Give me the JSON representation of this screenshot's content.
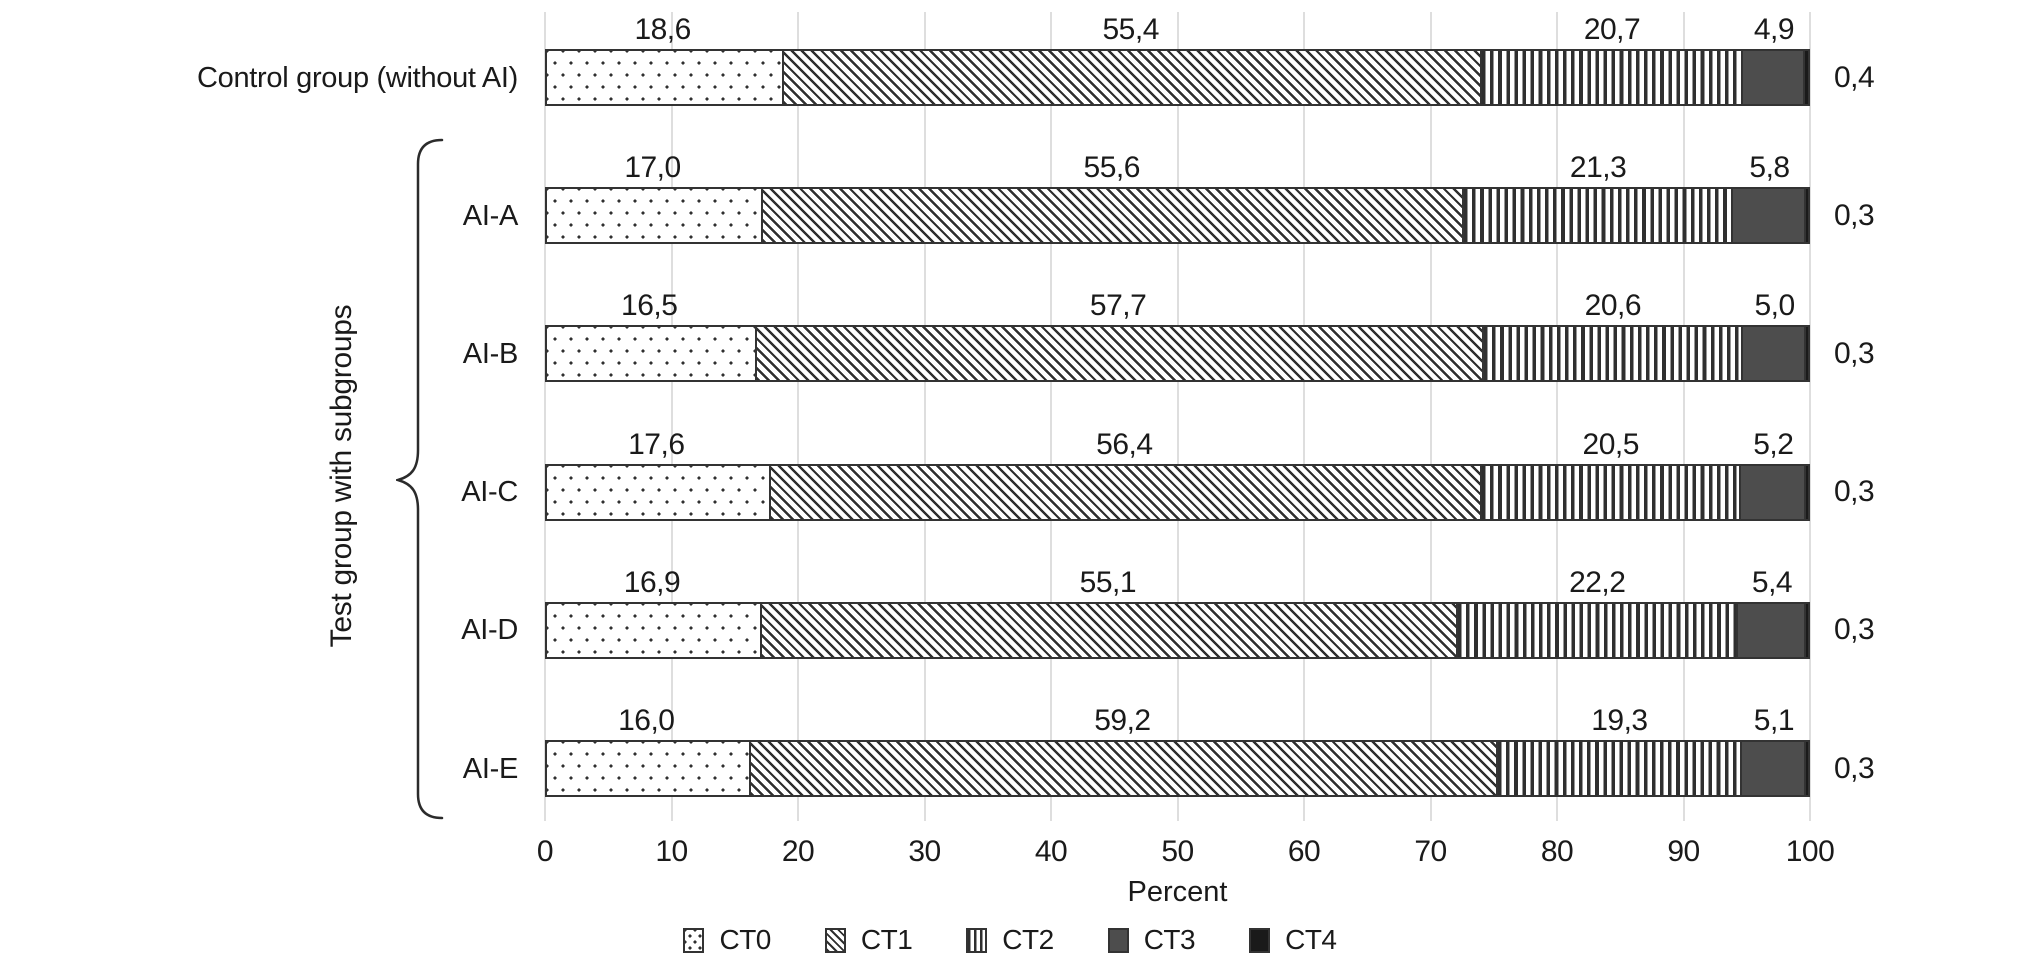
{
  "chart_data": {
    "type": "bar",
    "orientation": "horizontal-stacked",
    "title": "",
    "xlabel": "Percent",
    "ylabel": "",
    "xlim": [
      0,
      100
    ],
    "x_ticks": [
      0,
      10,
      20,
      30,
      40,
      50,
      60,
      70,
      80,
      90,
      100
    ],
    "grid": true,
    "legend_position": "bottom",
    "decimal_separator": ",",
    "group_label": "Test group with subgroups",
    "series_keys": [
      "CT0",
      "CT1",
      "CT2",
      "CT3",
      "CT4"
    ],
    "legend": [
      {
        "id": "CT0",
        "pattern": "dots"
      },
      {
        "id": "CT1",
        "pattern": "diag"
      },
      {
        "id": "CT2",
        "pattern": "vlines"
      },
      {
        "id": "CT3",
        "pattern": "solid"
      },
      {
        "id": "CT4",
        "pattern": "black"
      }
    ],
    "rows": [
      {
        "label": "Control group (without AI)",
        "in_test_group": false,
        "values": [
          18.6,
          55.4,
          20.7,
          4.9,
          0.4
        ],
        "display": [
          "18,6",
          "55,4",
          "20,7",
          "4,9",
          "0,4"
        ]
      },
      {
        "label": "AI-A",
        "in_test_group": true,
        "values": [
          17.0,
          55.6,
          21.3,
          5.8,
          0.3
        ],
        "display": [
          "17,0",
          "55,6",
          "21,3",
          "5,8",
          "0,3"
        ]
      },
      {
        "label": "AI-B",
        "in_test_group": true,
        "values": [
          16.5,
          57.7,
          20.6,
          5.0,
          0.3
        ],
        "display": [
          "16,5",
          "57,7",
          "20,6",
          "5,0",
          "0,3"
        ]
      },
      {
        "label": "AI-C",
        "in_test_group": true,
        "values": [
          17.6,
          56.4,
          20.5,
          5.2,
          0.3
        ],
        "display": [
          "17,6",
          "56,4",
          "20,5",
          "5,2",
          "0,3"
        ]
      },
      {
        "label": "AI-D",
        "in_test_group": true,
        "values": [
          16.9,
          55.1,
          22.2,
          5.4,
          0.3
        ],
        "display": [
          "16,9",
          "55,1",
          "22,2",
          "5,4",
          "0,3"
        ]
      },
      {
        "label": "AI-E",
        "in_test_group": true,
        "values": [
          16.0,
          59.2,
          19.3,
          5.1,
          0.3
        ],
        "display": [
          "16,0",
          "59,2",
          "19,3",
          "5,1",
          "0,3"
        ]
      }
    ],
    "colors": {
      "pattern_ink": "#2f2f2f",
      "segment_border": "#333333",
      "ct3_fill": "#4d4d4d",
      "ct4_fill": "#1a1a1a",
      "gridline": "#dedede",
      "text": "#1a1a1a"
    }
  }
}
